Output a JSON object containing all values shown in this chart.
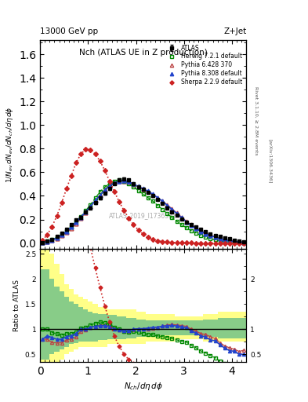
{
  "atlas_x": [
    0.05,
    0.15,
    0.25,
    0.35,
    0.45,
    0.55,
    0.65,
    0.75,
    0.85,
    0.95,
    1.05,
    1.15,
    1.25,
    1.35,
    1.45,
    1.55,
    1.65,
    1.75,
    1.85,
    1.95,
    2.05,
    2.15,
    2.25,
    2.35,
    2.45,
    2.55,
    2.65,
    2.75,
    2.85,
    2.95,
    3.05,
    3.15,
    3.25,
    3.35,
    3.45,
    3.55,
    3.65,
    3.75,
    3.85,
    3.95,
    4.05,
    4.15,
    4.25
  ],
  "atlas_y": [
    0.005,
    0.015,
    0.03,
    0.055,
    0.085,
    0.115,
    0.155,
    0.195,
    0.22,
    0.265,
    0.3,
    0.34,
    0.38,
    0.42,
    0.46,
    0.505,
    0.535,
    0.545,
    0.535,
    0.5,
    0.475,
    0.455,
    0.43,
    0.4,
    0.37,
    0.335,
    0.3,
    0.265,
    0.235,
    0.205,
    0.175,
    0.155,
    0.135,
    0.115,
    0.095,
    0.08,
    0.065,
    0.055,
    0.045,
    0.035,
    0.025,
    0.018,
    0.012
  ],
  "atlas_yerr": [
    0.002,
    0.003,
    0.004,
    0.005,
    0.006,
    0.007,
    0.008,
    0.008,
    0.009,
    0.009,
    0.009,
    0.009,
    0.009,
    0.009,
    0.009,
    0.009,
    0.009,
    0.009,
    0.009,
    0.009,
    0.009,
    0.009,
    0.009,
    0.009,
    0.008,
    0.008,
    0.008,
    0.007,
    0.007,
    0.006,
    0.006,
    0.005,
    0.005,
    0.004,
    0.004,
    0.003,
    0.003,
    0.003,
    0.003,
    0.002,
    0.002,
    0.002,
    0.002
  ],
  "herwig_x": [
    0.05,
    0.15,
    0.25,
    0.35,
    0.45,
    0.55,
    0.65,
    0.75,
    0.85,
    0.95,
    1.05,
    1.15,
    1.25,
    1.35,
    1.45,
    1.55,
    1.65,
    1.75,
    1.85,
    1.95,
    2.05,
    2.15,
    2.25,
    2.35,
    2.45,
    2.55,
    2.65,
    2.75,
    2.85,
    2.95,
    3.05,
    3.15,
    3.25,
    3.35,
    3.45,
    3.55,
    3.65,
    3.75,
    3.85,
    3.95,
    4.05,
    4.15,
    4.25
  ],
  "herwig_y": [
    0.005,
    0.015,
    0.028,
    0.05,
    0.075,
    0.105,
    0.14,
    0.185,
    0.225,
    0.275,
    0.325,
    0.38,
    0.435,
    0.475,
    0.505,
    0.525,
    0.535,
    0.525,
    0.505,
    0.475,
    0.445,
    0.415,
    0.385,
    0.355,
    0.32,
    0.285,
    0.25,
    0.215,
    0.185,
    0.155,
    0.13,
    0.105,
    0.085,
    0.065,
    0.05,
    0.038,
    0.028,
    0.02,
    0.014,
    0.009,
    0.006,
    0.004,
    0.002
  ],
  "pythia6_x": [
    0.05,
    0.15,
    0.25,
    0.35,
    0.45,
    0.55,
    0.65,
    0.75,
    0.85,
    0.95,
    1.05,
    1.15,
    1.25,
    1.35,
    1.45,
    1.55,
    1.65,
    1.75,
    1.85,
    1.95,
    2.05,
    2.15,
    2.25,
    2.35,
    2.45,
    2.55,
    2.65,
    2.75,
    2.85,
    2.95,
    3.05,
    3.15,
    3.25,
    3.35,
    3.45,
    3.55,
    3.65,
    3.75,
    3.85,
    3.95,
    4.05,
    4.15,
    4.25
  ],
  "pythia6_y": [
    0.004,
    0.012,
    0.022,
    0.04,
    0.062,
    0.09,
    0.125,
    0.165,
    0.21,
    0.26,
    0.31,
    0.36,
    0.41,
    0.455,
    0.49,
    0.515,
    0.525,
    0.525,
    0.515,
    0.495,
    0.475,
    0.455,
    0.435,
    0.41,
    0.385,
    0.355,
    0.325,
    0.29,
    0.255,
    0.22,
    0.185,
    0.155,
    0.13,
    0.105,
    0.085,
    0.068,
    0.053,
    0.04,
    0.03,
    0.022,
    0.015,
    0.01,
    0.007
  ],
  "pythia8_x": [
    0.05,
    0.15,
    0.25,
    0.35,
    0.45,
    0.55,
    0.65,
    0.75,
    0.85,
    0.95,
    1.05,
    1.15,
    1.25,
    1.35,
    1.45,
    1.55,
    1.65,
    1.75,
    1.85,
    1.95,
    2.05,
    2.15,
    2.25,
    2.35,
    2.45,
    2.55,
    2.65,
    2.75,
    2.85,
    2.95,
    3.05,
    3.15,
    3.25,
    3.35,
    3.45,
    3.55,
    3.65,
    3.75,
    3.85,
    3.95,
    4.05,
    4.15,
    4.25
  ],
  "pythia8_y": [
    0.004,
    0.013,
    0.025,
    0.044,
    0.068,
    0.098,
    0.135,
    0.178,
    0.22,
    0.265,
    0.31,
    0.36,
    0.405,
    0.45,
    0.485,
    0.51,
    0.525,
    0.53,
    0.52,
    0.5,
    0.48,
    0.46,
    0.44,
    0.415,
    0.385,
    0.355,
    0.32,
    0.285,
    0.25,
    0.215,
    0.18,
    0.15,
    0.125,
    0.1,
    0.08,
    0.063,
    0.05,
    0.038,
    0.028,
    0.02,
    0.014,
    0.009,
    0.006
  ],
  "sherpa_x": [
    0.05,
    0.15,
    0.25,
    0.35,
    0.45,
    0.55,
    0.65,
    0.75,
    0.85,
    0.95,
    1.05,
    1.15,
    1.25,
    1.35,
    1.45,
    1.55,
    1.65,
    1.75,
    1.85,
    1.95,
    2.05,
    2.15,
    2.25,
    2.35,
    2.45,
    2.55,
    2.65,
    2.75,
    2.85,
    2.95,
    3.05,
    3.15,
    3.25,
    3.35,
    3.45,
    3.55,
    3.65,
    3.75,
    3.85,
    3.95,
    4.05,
    4.15,
    4.25
  ],
  "sherpa_y": [
    0.025,
    0.07,
    0.14,
    0.23,
    0.34,
    0.46,
    0.57,
    0.68,
    0.755,
    0.795,
    0.79,
    0.755,
    0.695,
    0.615,
    0.525,
    0.435,
    0.35,
    0.275,
    0.21,
    0.155,
    0.11,
    0.075,
    0.05,
    0.032,
    0.02,
    0.012,
    0.008,
    0.005,
    0.003,
    0.002,
    0.001,
    0.001,
    0.0,
    0.0,
    0.0,
    0.0,
    0.0,
    0.0,
    0.0,
    0.0,
    0.0,
    0.0,
    0.0
  ],
  "band_x": [
    0.0,
    0.1,
    0.2,
    0.3,
    0.4,
    0.5,
    0.6,
    0.7,
    0.8,
    0.9,
    1.0,
    1.1,
    1.2,
    1.4,
    1.6,
    1.8,
    2.0,
    2.2,
    2.5,
    2.8,
    3.1,
    3.4,
    3.7,
    4.0,
    4.3
  ],
  "yellow_lo": [
    0.25,
    0.25,
    0.3,
    0.35,
    0.4,
    0.5,
    0.55,
    0.6,
    0.65,
    0.65,
    0.65,
    0.65,
    0.65,
    0.7,
    0.7,
    0.7,
    0.7,
    0.75,
    0.75,
    0.8,
    0.8,
    0.75,
    0.75,
    0.75,
    0.75
  ],
  "yellow_hi": [
    2.6,
    2.6,
    2.5,
    2.3,
    2.1,
    1.9,
    1.8,
    1.7,
    1.65,
    1.6,
    1.55,
    1.5,
    1.45,
    1.4,
    1.4,
    1.4,
    1.35,
    1.3,
    1.3,
    1.25,
    1.25,
    1.3,
    1.35,
    1.35,
    1.35
  ],
  "green_lo": [
    0.4,
    0.4,
    0.5,
    0.55,
    0.6,
    0.65,
    0.7,
    0.72,
    0.75,
    0.75,
    0.75,
    0.75,
    0.78,
    0.8,
    0.8,
    0.82,
    0.85,
    0.85,
    0.88,
    0.88,
    0.88,
    0.85,
    0.82,
    0.82,
    0.82
  ],
  "green_hi": [
    2.2,
    2.2,
    2.0,
    1.85,
    1.75,
    1.65,
    1.55,
    1.5,
    1.45,
    1.4,
    1.35,
    1.32,
    1.3,
    1.28,
    1.25,
    1.22,
    1.2,
    1.18,
    1.18,
    1.18,
    1.18,
    1.2,
    1.22,
    1.22,
    1.22
  ],
  "xlim": [
    0.0,
    4.3
  ],
  "ylim_main": [
    -0.05,
    1.72
  ],
  "ylim_ratio": [
    0.35,
    2.6
  ],
  "yticks_main": [
    0.0,
    0.2,
    0.4,
    0.6,
    0.8,
    1.0,
    1.2,
    1.4,
    1.6
  ],
  "yticks_ratio": [
    0.5,
    1.0,
    1.5,
    2.0,
    2.5
  ],
  "yticks_ratio_right": [
    0.5,
    1.0,
    2.0
  ],
  "atlas_color": "#000000",
  "herwig_color": "#008800",
  "pythia6_color": "#bb4444",
  "pythia8_color": "#2244cc",
  "sherpa_color": "#cc2222",
  "title_left": "13000 GeV pp",
  "title_right": "Z+Jet",
  "plot_title": "Nch (ATLAS UE in Z production)",
  "ylabel_main": "$1/N_{ev}\\,dN_{ev}/dN_{ch}/d\\eta\\,d\\phi$",
  "ylabel_ratio": "Ratio to ATLAS",
  "xlabel": "$N_{ch}/d\\eta\\,d\\phi$",
  "watermark": "ATLAS_2019_I1736531",
  "label_atlas": "ATLAS",
  "label_herwig": "Herwig 7.2.1 default",
  "label_p6": "Pythia 6.428 370",
  "label_p8": "Pythia 8.308 default",
  "label_sherpa": "Sherpa 2.2.9 default",
  "right_text1": "Rivet 3.1.10, ≥ 2.8M events",
  "right_text2": "[arXiv:1306.3436]"
}
